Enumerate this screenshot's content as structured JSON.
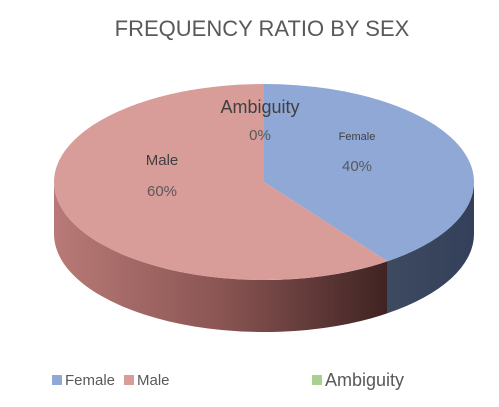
{
  "chart_data": {
    "type": "pie3d",
    "title": "FREQUENCY RATIO BY SEX",
    "categories": [
      "Female",
      "Male",
      "Ambiguity"
    ],
    "values": [
      40,
      60,
      0
    ],
    "value_labels": [
      "40%",
      "60%",
      "0%"
    ],
    "colors": [
      "#8fa8d6",
      "#d89c99",
      "#a9d18e"
    ]
  }
}
